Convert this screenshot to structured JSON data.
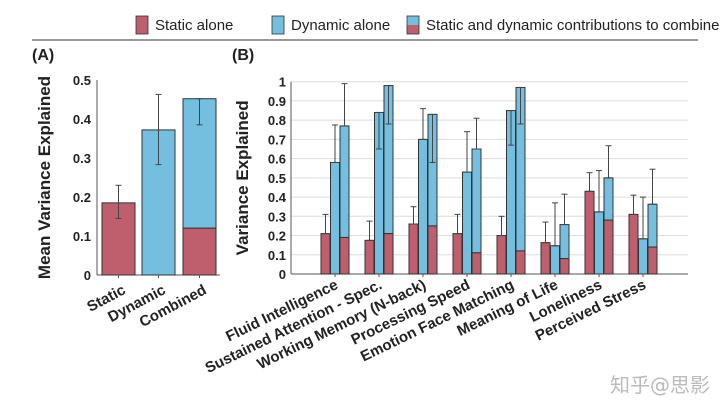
{
  "colors": {
    "static": "#bf5f6d",
    "dynamic": "#74bfe0",
    "axis": "#555555",
    "grid": "#dddddd"
  },
  "legend": [
    {
      "label": "Static alone",
      "kind": "static"
    },
    {
      "label": "Dynamic alone",
      "kind": "dynamic"
    },
    {
      "label": "Static and dynamic contributions to combined",
      "kind": "split"
    }
  ],
  "watermark": "知乎@思影",
  "chart_data": [
    {
      "panel": "(A)",
      "type": "bar",
      "title": "",
      "ylabel": "Mean Variance Explained",
      "xlabel": "",
      "ylim": [
        0,
        0.5
      ],
      "yticks": [
        "0",
        "0.1",
        "0.2",
        "0.3",
        "0.4",
        "0.5"
      ],
      "categories": [
        "Static",
        "Dynamic",
        "Combined"
      ],
      "bars": [
        {
          "category": "Static",
          "kind": "static",
          "value": 0.185,
          "err_low": 0.145,
          "err_high": 0.23
        },
        {
          "category": "Dynamic",
          "kind": "dynamic",
          "value": 0.372,
          "err_low": 0.283,
          "err_high": 0.463
        },
        {
          "category": "Combined",
          "kind": "split",
          "value": 0.452,
          "static_part": 0.12,
          "err_low": 0.385,
          "err_high": 0.452
        }
      ],
      "grid": false
    },
    {
      "panel": "(B)",
      "type": "bar",
      "title": "",
      "ylabel": "Variance Explained",
      "xlabel": "",
      "ylim": [
        0,
        1
      ],
      "yticks": [
        "0",
        "0.1",
        "0.2",
        "0.3",
        "0.4",
        "0.5",
        "0.6",
        "0.7",
        "0.8",
        "0.9",
        "1"
      ],
      "grid": true,
      "categories": [
        "Fluid Intelligence",
        "Sustained Attention - Spec.",
        "Working Memory (N-back)",
        "Processing Speed",
        "Emotion Face Matching",
        "Meaning of Life",
        "Loneliness",
        "Perceived Stress"
      ],
      "series": [
        {
          "name": "Static alone",
          "values": [
            0.21,
            0.175,
            0.26,
            0.21,
            0.2,
            0.163,
            0.43,
            0.31
          ],
          "err_high": [
            0.31,
            0.275,
            0.35,
            0.31,
            0.3,
            0.27,
            0.527,
            0.41
          ]
        },
        {
          "name": "Dynamic alone",
          "values": [
            0.58,
            0.84,
            0.7,
            0.53,
            0.85,
            0.147,
            0.323,
            0.183
          ],
          "err_high": [
            0.775,
            0.84,
            0.86,
            0.74,
            0.85,
            0.37,
            0.538,
            0.4
          ],
          "err_low": [
            0.58,
            0.65,
            0.7,
            0.53,
            0.67,
            0.147,
            0.323,
            0.183
          ]
        },
        {
          "name": "Combined",
          "values": [
            0.77,
            0.98,
            0.83,
            0.65,
            0.97,
            0.257,
            0.5,
            0.363
          ],
          "static_part": [
            0.19,
            0.21,
            0.25,
            0.11,
            0.12,
            0.08,
            0.28,
            0.14
          ],
          "err_high": [
            0.99,
            0.98,
            0.83,
            0.81,
            0.97,
            0.415,
            0.667,
            0.545
          ],
          "err_low": [
            0.77,
            0.78,
            0.58,
            0.65,
            0.78,
            0.257,
            0.5,
            0.363
          ]
        }
      ]
    }
  ]
}
